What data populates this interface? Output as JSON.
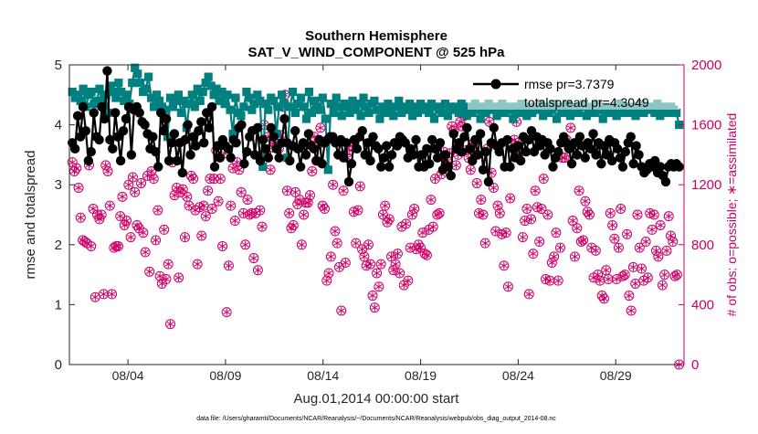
{
  "chart_data": {
    "type": "line",
    "title": "Southern Hemisphere",
    "subtitle": "SAT_V_WIND_COMPONENT @ 525 hPa",
    "xlabel": "Aug.01,2014 00:00:00 start",
    "ylabel_left": "rmse and totalspread",
    "ylabel_right": "# of obs: o=possible; ∗=assimilated",
    "xlim": [
      1,
      32.5
    ],
    "ylim_left": [
      0,
      5
    ],
    "ylim_right": [
      0,
      2000
    ],
    "x_ticks": [
      {
        "value": 4,
        "label": "08/04"
      },
      {
        "value": 9,
        "label": "08/09"
      },
      {
        "value": 14,
        "label": "08/14"
      },
      {
        "value": 19,
        "label": "08/19"
      },
      {
        "value": 24,
        "label": "08/24"
      },
      {
        "value": 29,
        "label": "08/29"
      }
    ],
    "y_ticks_left": [
      "0",
      "1",
      "2",
      "3",
      "4",
      "5"
    ],
    "y_ticks_right": [
      "0",
      "400",
      "800",
      "1200",
      "1600",
      "2000"
    ],
    "legend": {
      "position": "top-right",
      "entries": [
        "rmse pr=3.7379",
        "totalspread pr=4.3049"
      ]
    },
    "footer": "data file: /Users/gharamti/Documents/NCAR/Reanalysis/~/Documents/NCAR/Reanalysis/webpub/obs_diag_output_2014-08.nc",
    "colors": {
      "rmse": "#000000",
      "spread": "#00807f",
      "obs": "#cc0066"
    },
    "series": [
      {
        "name": "rmse",
        "axis": "left",
        "values": [
          3.7,
          3.6,
          4.15,
          3.8,
          4.3,
          3.9,
          3.4,
          3.55,
          4.2,
          3.8,
          3.75,
          4.3,
          4.1,
          4.9,
          3.75,
          3.6,
          4.2,
          3.8,
          3.4,
          3.9,
          4.1,
          4.3,
          3.5,
          4.25,
          4.3,
          4.2,
          4.05,
          4.0,
          3.85,
          3.6,
          3.8,
          3.55,
          3.3,
          4.2,
          3.9,
          4.1,
          3.4,
          3.7,
          3.85,
          3.4,
          3.7,
          3.2,
          3.75,
          4.0,
          3.5,
          3.8,
          3.65,
          3.9,
          4.05,
          3.7,
          4.2,
          3.95,
          4.3,
          3.3,
          3.65,
          3.45,
          3.75,
          3.65,
          3.6,
          3.45,
          3.75,
          3.7,
          3.95,
          4.0,
          3.35,
          3.55,
          3.8,
          3.9,
          3.5,
          3.95,
          3.4,
          3.75,
          3.6,
          3.45,
          3.95,
          3.8,
          3.6,
          3.45,
          3.7,
          4.1,
          3.7,
          3.4,
          3.65,
          3.9,
          3.6,
          3.3,
          3.7,
          3.5,
          3.85,
          3.65,
          3.6,
          3.4,
          3.75,
          3.35,
          3.7,
          3.75,
          3.8,
          3.8,
          3.7,
          3.5,
          3.75,
          3.45,
          3.7,
          3.05,
          3.35,
          3.75,
          3.6,
          3.8,
          3.9,
          3.5,
          3.7,
          3.4,
          3.8,
          3.65,
          3.6,
          3.3,
          3.45,
          3.65,
          3.3,
          3.5,
          3.7,
          3.65,
          3.8,
          3.75,
          3.7,
          3.45,
          3.6,
          3.5,
          3.75,
          3.3,
          3.5,
          3.3,
          3.6,
          3.35,
          3.75,
          3.6,
          3.45,
          3.7,
          3.25,
          3.5,
          3.3,
          3.15,
          3.85,
          3.6,
          3.7,
          3.55,
          3.8,
          3.95,
          3.6,
          3.4,
          3.75,
          3.5,
          3.85,
          3.25,
          3.55,
          3.05,
          3.7,
          3.95,
          3.65,
          3.55,
          3.7,
          3.3,
          3.75,
          3.3,
          3.6,
          3.45,
          3.65,
          3.4,
          3.8,
          3.55,
          3.75,
          3.9,
          3.55,
          3.8,
          3.65,
          3.75,
          3.5,
          3.7,
          3.6,
          3.3,
          3.45,
          3.55,
          3.7,
          3.8,
          3.7,
          3.6,
          3.35,
          3.7,
          3.5,
          3.8,
          3.65,
          3.45,
          3.7,
          3.6,
          3.85,
          3.5,
          3.7,
          3.35,
          3.65,
          3.5,
          3.75,
          3.4,
          3.7,
          3.6,
          3.45,
          3.3,
          3.55,
          3.7,
          3.8,
          3.35,
          3.65,
          3.5,
          3.3,
          3.2,
          3.25,
          3.35,
          3.3,
          3.4,
          3.2,
          3.3,
          3.15,
          3.05,
          3.3,
          3.35,
          3.3,
          3.35,
          3.3
        ]
      },
      {
        "name": "totalspread",
        "axis": "left",
        "values": [
          4.55,
          4.45,
          4.5,
          4.4,
          4.6,
          4.3,
          4.5,
          4.55,
          4.35,
          4.4,
          4.6,
          4.35,
          4.5,
          4.2,
          4.65,
          4.55,
          4.45,
          4.7,
          4.55,
          4.4,
          4.5,
          4.35,
          4.7,
          4.95,
          4.85,
          4.7,
          4.55,
          4.6,
          4.8,
          4.45,
          4.3,
          4.5,
          4.4,
          4.3,
          4.25,
          3.8,
          4.45,
          4.3,
          4.4,
          4.5,
          4.2,
          4.4,
          3.95,
          4.35,
          4.5,
          4.3,
          4.6,
          4.4,
          4.55,
          4.7,
          4.8,
          4.65,
          4.5,
          4.6,
          4.4,
          4.55,
          4.35,
          4.5,
          4.25,
          3.85,
          4.45,
          4.2,
          4.15,
          4.3,
          4.55,
          4.45,
          4.25,
          4.35,
          4.5,
          4.4,
          3.3,
          4.35,
          4.25,
          4.45,
          4.4,
          3.85,
          4.3,
          4.5,
          4.35,
          3.45,
          4.3,
          4.55,
          4.2,
          4.35,
          4.45,
          4.3,
          4.1,
          4.55,
          4.2,
          4.4,
          4.3,
          4.25,
          4.45,
          4.1,
          3.25,
          4.35,
          4.2,
          4.45,
          4.3,
          4.15,
          4.35,
          4.3,
          4.2,
          4.4,
          4.25,
          4.35,
          4.15,
          4.45,
          4.3,
          4.2,
          4.35,
          4.4,
          4.25,
          4.1,
          4.3,
          4.2,
          4.35,
          4.25,
          4.15,
          4.3,
          4.4,
          4.2,
          4.3,
          4.25,
          4.35,
          4.15,
          4.3,
          4.2,
          4.35,
          4.25,
          4.3,
          4.2,
          4.35,
          4.1,
          4.3,
          4.25,
          4.2,
          4.35,
          4.15,
          4.3,
          4.25,
          4.3,
          4.2,
          4.35,
          4.25,
          4.15,
          4.3,
          4.2,
          4.35,
          4.25,
          4.1,
          4.3,
          4.2,
          4.35,
          4.25,
          4.3,
          4.15,
          4.25,
          4.35,
          4.2,
          4.3,
          4.25,
          4.1,
          4.3,
          4.2,
          4.35,
          4.25,
          4.15,
          4.3,
          4.2,
          4.3,
          4.25,
          4.35,
          4.15,
          4.3,
          4.2,
          4.25,
          4.35,
          4.1,
          4.3,
          4.2,
          4.25,
          4.35,
          4.15,
          4.3,
          4.25,
          4.2,
          4.3,
          4.35,
          4.15,
          4.25,
          4.3,
          4.2,
          4.35,
          4.25,
          4.1,
          4.3,
          4.2,
          4.25,
          4.3,
          4.15,
          4.35,
          4.2,
          4.3,
          4.25,
          4.2,
          4.3,
          4.15,
          4.25,
          4.35,
          4.2,
          4.3,
          4.25,
          4.3,
          4.2,
          4.35,
          4.15,
          4.25,
          4.3,
          4.2,
          4.3,
          4.25,
          4.2,
          4.0
        ]
      },
      {
        "name": "obs_possible",
        "axis": "right",
        "values": [
          1350,
          1290,
          1310,
          1180,
          980,
          830,
          820,
          810,
          1330,
          790,
          1040,
          450,
          1000,
          970,
          1000,
          470,
          1330,
          1290,
          1060,
          470,
          780,
          790,
          790,
          990,
          1120,
          930,
          960,
          1200,
          850,
          1250,
          1150,
          930,
          910,
          1210,
          880,
          750,
          1260,
          620,
          1290,
          1240,
          830,
          1030,
          590,
          540,
          900,
          570,
          670,
          270,
          1350,
          1130,
          1180,
          580,
          1150,
          1170,
          850,
          1120,
          1060,
          1260,
          1240,
          1030,
          670,
          1050,
          860,
          1060,
          990,
          1160,
          1240,
          1040,
          1240,
          1430,
          1090,
          1240,
          790,
          1410,
          350,
          660,
          1060,
          1310,
          960,
          1350,
          1300,
          1150,
          1010,
          800,
          1100,
          1000,
          1010,
          710,
          1010,
          630,
          1030,
          920,
          1600,
          1410,
          1520,
          1300,
          1450,
          1480,
          1450,
          1440,
          1530,
          1720,
          1800,
          1160,
          1010,
          910,
          930,
          1150,
          1070,
          1100,
          800,
          1000,
          1080,
          1080,
          1130,
          1290,
          1520,
          1360,
          1470,
          1580,
          1060,
          1040,
          560,
          610,
          720,
          1200,
          890,
          810,
          650,
          360,
          1160,
          680,
          1380,
          1430,
          1460,
          1020,
          810,
          1030,
          1190,
          770,
          720,
          660,
          800,
          670,
          460,
          380,
          610,
          520,
          670,
          1000,
          1060,
          950,
          970,
          720,
          630,
          670,
          740,
          610,
          920,
          530,
          940,
          560,
          780,
          1000,
          1040,
          770,
          800,
          780,
          880,
          740,
          730,
          900,
          1100,
          920,
          1240,
          1000,
          1010,
          1270,
          1420,
          1330,
          1360,
          1410,
          1590,
          1560,
          1330,
          1400,
          1620,
          1590,
          1660,
          1430,
          1380,
          1300,
          1470,
          1460,
          1210,
          1010,
          1100,
          1000,
          810,
          1440,
          1620,
          1280,
          1180,
          890,
          1060,
          1010,
          870,
          660,
          880,
          520,
          1110,
          1470,
          1500,
          1620,
          1480,
          1420,
          850,
          960,
          1040,
          470,
          970,
          740,
          1160,
          1050,
          820,
          1040,
          1240,
          570,
          1000,
          560,
          680,
          720,
          880,
          560,
          780,
          1380,
          1380,
          1500,
          1450,
          1580,
          960,
          720,
          910,
          1160,
          820,
          830,
          1090,
          1020,
          1000,
          780,
          580,
          760,
          600,
          560,
          460,
          440,
          630,
          570,
          1010,
          930,
          840,
          570,
          780,
          1040,
          590,
          600,
          870,
          460,
          360,
          650,
          540,
          1000,
          780,
          640,
          560,
          820,
          580,
          1010,
          900,
          1000,
          760,
          720,
          930,
          530,
          600,
          760,
          990,
          860,
          820,
          590,
          600,
          0
        ]
      }
    ]
  }
}
